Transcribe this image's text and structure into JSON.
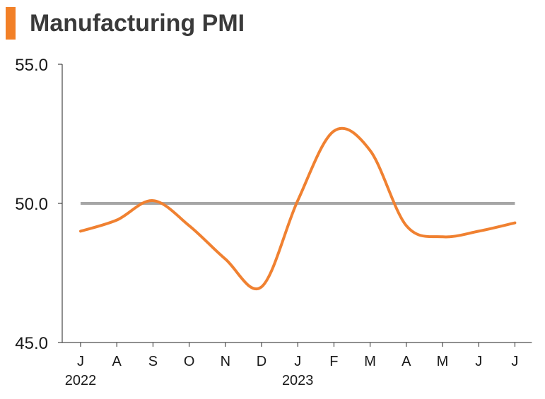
{
  "header": {
    "title": "Manufacturing PMI"
  },
  "colors": {
    "accent": "#f28027",
    "series": "#f08131",
    "reference": "#a6a6a6",
    "axis": "#222222"
  },
  "chart_data": {
    "type": "line",
    "title": "Manufacturing PMI",
    "xlabel": "",
    "ylabel": "",
    "ylim": [
      45.0,
      55.0
    ],
    "yticks": [
      "55.0",
      "50.0",
      "45.0"
    ],
    "ytick_values": [
      55.0,
      50.0,
      45.0
    ],
    "categories": [
      "J",
      "A",
      "S",
      "O",
      "N",
      "D",
      "J",
      "F",
      "M",
      "A",
      "M",
      "J",
      "J"
    ],
    "year_labels": [
      {
        "index": 0,
        "label": "2022"
      },
      {
        "index": 6,
        "label": "2023"
      }
    ],
    "series": [
      {
        "name": "Manufacturing PMI",
        "values": [
          49.0,
          49.4,
          50.1,
          49.2,
          48.0,
          47.0,
          50.1,
          52.6,
          51.9,
          49.2,
          48.8,
          49.0,
          49.3
        ]
      }
    ],
    "reference_line": 50.0,
    "grid": false,
    "legend": "none"
  }
}
